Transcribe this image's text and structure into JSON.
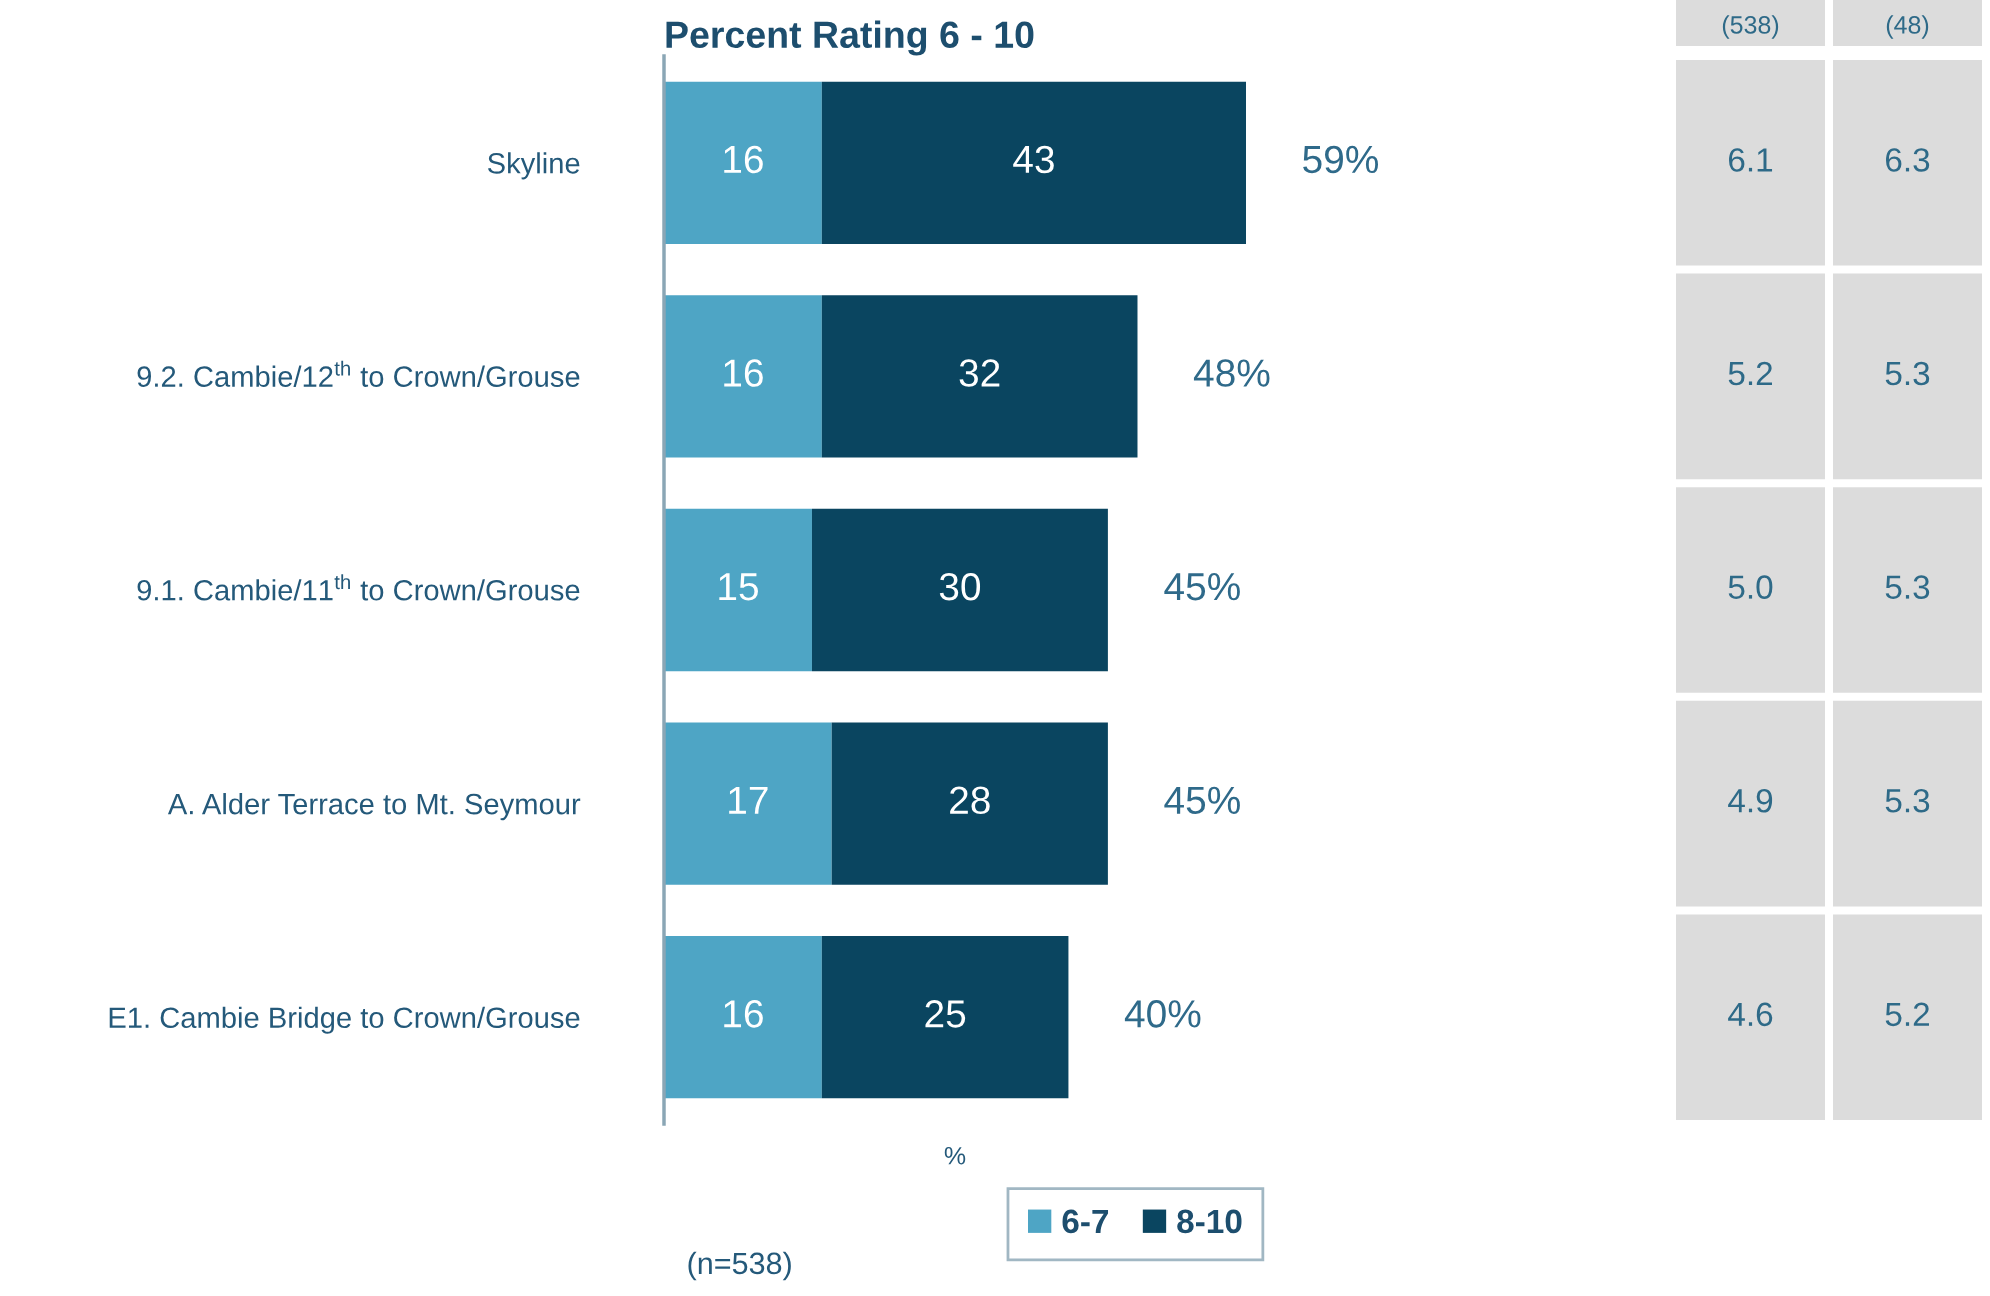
{
  "chart_data": [
    {
      "type": "bar",
      "orientation": "horizontal",
      "stacked": true,
      "title": "Percent Rating 6 - 10",
      "xlabel": "%",
      "categories": [
        "Skyline",
        "9.2. Cambie/12$^{th}$ to Crown/Grouse",
        "9.1. Cambie/11$^{th}$ to Crown/Grouse",
        "A. Alder Terrace to Mt. Seymour",
        "E1. Cambie Bridge to Crown/Grouse"
      ],
      "series": [
        {
          "name": "6-7",
          "color": "#4ea5c5",
          "values": [
            16,
            16,
            15,
            17,
            16
          ]
        },
        {
          "name": "8-10",
          "color": "#0a4560",
          "values": [
            43,
            32,
            30,
            28,
            25
          ]
        }
      ],
      "data_labels": true,
      "totals": [
        "59%",
        "48%",
        "45%",
        "45%",
        "40%"
      ],
      "legend": "bottom",
      "tick_labels": "y",
      "annotations": [
        "(n=538)"
      ]
    },
    {
      "type": "other",
      "annotations": [
        "(538)",
        "(48)",
        "6.1",
        "6.3",
        "5.2",
        "5.3",
        "5.0",
        "5.3",
        "4.9",
        "5.3",
        "4.6",
        "5.2"
      ]
    }
  ]
}
